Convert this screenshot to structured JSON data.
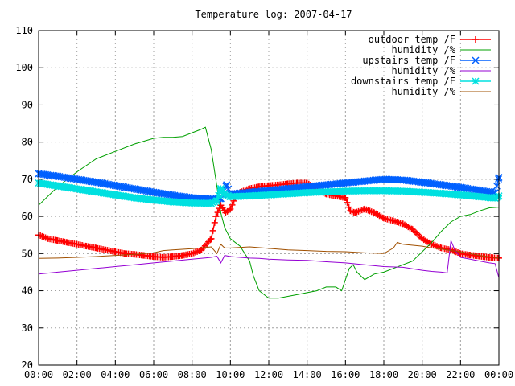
{
  "chart_data": {
    "type": "line",
    "title": "Temperature log: 2007-04-17",
    "xlabel": "",
    "ylabel": "",
    "xlim": [
      0,
      24
    ],
    "ylim": [
      20,
      110
    ],
    "grid": true,
    "legend_placement": "top-right",
    "x_tick_labels": [
      "00:00",
      "02:00",
      "04:00",
      "06:00",
      "08:00",
      "10:00",
      "12:00",
      "14:00",
      "16:00",
      "18:00",
      "20:00",
      "22:00",
      "00:00"
    ],
    "y_tick_labels": [
      "20",
      "30",
      "40",
      "50",
      "60",
      "70",
      "80",
      "90",
      "100",
      "110"
    ],
    "series": [
      {
        "name": "outdoor temp /F",
        "color": "#ff0000",
        "marker": "plus",
        "x": [
          0,
          0.5,
          1,
          1.5,
          2,
          2.5,
          3,
          3.5,
          4,
          4.5,
          5,
          5.5,
          6,
          6.5,
          7,
          7.5,
          8,
          8.5,
          9,
          9.25,
          9.5,
          9.75,
          10,
          10.25,
          10.5,
          11,
          11.5,
          12,
          12.5,
          13,
          13.5,
          14,
          14.5,
          15,
          15.5,
          16,
          16.25,
          16.5,
          17,
          17.5,
          18,
          18.5,
          19,
          19.5,
          20,
          20.5,
          21,
          21.5,
          22,
          22.5,
          23,
          23.5,
          24
        ],
        "y": [
          55,
          54,
          53.5,
          53,
          52.5,
          52,
          51.5,
          51,
          50.5,
          50,
          49.8,
          49.5,
          49.2,
          49,
          49.2,
          49.5,
          50,
          51,
          54,
          60,
          63,
          61,
          62,
          65,
          66.5,
          67.5,
          68,
          68.3,
          68.5,
          68.8,
          69,
          69,
          67.5,
          66,
          65.5,
          65,
          61.5,
          61,
          62,
          61,
          59.5,
          58.8,
          58,
          56.5,
          54,
          52.5,
          51.5,
          51,
          50,
          49.6,
          49.3,
          49,
          48.8
        ]
      },
      {
        "name": "humidity /%",
        "color": "#00a000",
        "marker": "none",
        "x": [
          0,
          1,
          2,
          3,
          4,
          5,
          6,
          6.5,
          7,
          7.5,
          8,
          8.5,
          8.7,
          9,
          9.3,
          9.5,
          9.7,
          10,
          10.5,
          11,
          11.2,
          11.5,
          12,
          12.5,
          13,
          13.5,
          14,
          14.5,
          15,
          15.5,
          15.8,
          16,
          16.2,
          16.4,
          16.6,
          17,
          17.5,
          18,
          18.5,
          19,
          19.5,
          20,
          20.5,
          21,
          21.5,
          22,
          22.5,
          23,
          23.5,
          24
        ],
        "y": [
          63,
          68,
          72,
          75.5,
          77.5,
          79.5,
          81,
          81.3,
          81.3,
          81.5,
          82.5,
          83.5,
          84,
          78,
          68,
          61,
          57,
          54,
          52,
          48,
          44,
          40,
          38,
          38,
          38.5,
          39,
          39.5,
          40,
          41,
          41,
          40,
          43,
          46,
          47,
          45,
          43,
          44.5,
          45,
          46,
          47,
          48,
          50.5,
          53,
          56,
          58.5,
          60,
          60.5,
          61.5,
          62.3,
          62.5
        ]
      },
      {
        "name": "upstairs temp /F",
        "color": "#0060ff",
        "marker": "x",
        "x": [
          0,
          1,
          2,
          3,
          4,
          5,
          6,
          7,
          8,
          9,
          9.5,
          9.8,
          10,
          11,
          12,
          13,
          14,
          15,
          16,
          17,
          18,
          19,
          20,
          21,
          22,
          23,
          23.6,
          23.8,
          24
        ],
        "y": [
          71.5,
          70.8,
          70,
          69.2,
          68.3,
          67.4,
          66.5,
          65.7,
          65,
          64.7,
          64.8,
          68.5,
          66,
          66.5,
          67,
          67.5,
          68,
          68.5,
          69,
          69.5,
          70,
          69.8,
          69.2,
          68.5,
          67.8,
          67,
          66.5,
          66.3,
          70.5
        ]
      },
      {
        "name": "humidity /%",
        "color": "#9400d3",
        "marker": "none",
        "x": [
          0,
          1,
          2,
          3,
          4,
          5,
          6,
          7,
          8,
          9,
          9.3,
          9.5,
          9.7,
          10,
          10.5,
          11,
          11.5,
          12,
          13,
          14,
          15,
          16,
          17,
          18,
          19,
          20,
          20.5,
          21,
          21.3,
          21.5,
          21.7,
          22,
          22.5,
          23,
          23.5,
          23.8,
          24
        ],
        "y": [
          44.5,
          45,
          45.5,
          46,
          46.5,
          47,
          47.5,
          48,
          48.5,
          49,
          49.3,
          47.5,
          49.5,
          49.2,
          49,
          48.8,
          48.7,
          48.5,
          48.3,
          48.2,
          47.8,
          47.5,
          47,
          46.5,
          46.3,
          45.5,
          45.2,
          45,
          44.8,
          53.5,
          51,
          49,
          48.5,
          48,
          47.5,
          47.3,
          43.5
        ]
      },
      {
        "name": "downstairs temp /F",
        "color": "#00e0e0",
        "marker": "star",
        "x": [
          0,
          1,
          2,
          3,
          4,
          5,
          6,
          7,
          8,
          9,
          9.3,
          9.5,
          9.7,
          10,
          11,
          12,
          13,
          14,
          15,
          16,
          17,
          18,
          19,
          20,
          21,
          22,
          23,
          23.8,
          24
        ],
        "y": [
          69,
          68.2,
          67.4,
          66.6,
          65.8,
          65,
          64.4,
          63.9,
          63.6,
          63.5,
          64.2,
          67.5,
          66,
          65.3,
          65.5,
          65.8,
          66.1,
          66.4,
          66.6,
          66.8,
          66.9,
          66.9,
          66.8,
          66.5,
          66.2,
          65.8,
          65.3,
          64.9,
          65.5
        ]
      },
      {
        "name": "humidity /%",
        "color": "#a05000",
        "marker": "none",
        "x": [
          0,
          1,
          2,
          3,
          4,
          5,
          6,
          6.5,
          7,
          8,
          9,
          9.3,
          9.5,
          9.7,
          10,
          11,
          12,
          13,
          14,
          15,
          16,
          17,
          18,
          18.5,
          18.7,
          19,
          20,
          20.5,
          21,
          21.5,
          22,
          23,
          24
        ],
        "y": [
          48.7,
          48.8,
          49,
          49.2,
          49.5,
          49.8,
          50.2,
          50.8,
          51,
          51.3,
          51.8,
          50,
          52.5,
          51.5,
          51.5,
          51.8,
          51.4,
          51,
          50.8,
          50.6,
          50.5,
          50.2,
          50,
          51.5,
          53,
          52.5,
          52,
          51.5,
          51.2,
          50.8,
          50.5,
          49.5,
          48.8
        ]
      }
    ]
  }
}
